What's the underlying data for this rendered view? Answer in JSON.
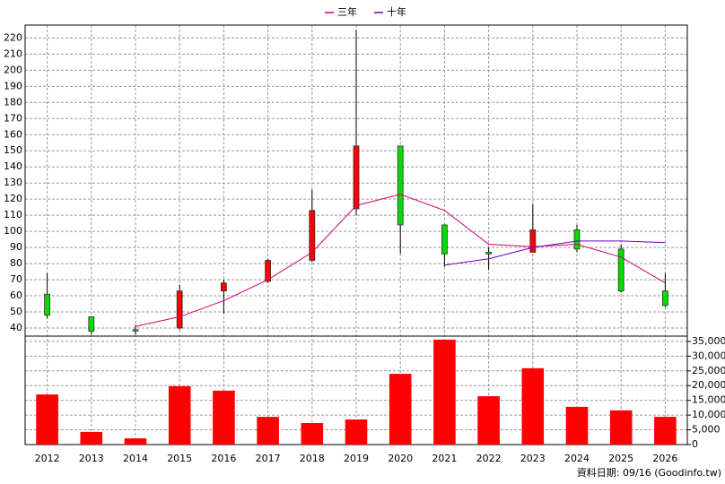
{
  "chart_data": {
    "type": "candlestick",
    "categories": [
      "2012",
      "2013",
      "2014",
      "2015",
      "2016",
      "2017",
      "2018",
      "2019",
      "2020",
      "2021",
      "2022",
      "2023",
      "2024",
      "2025",
      "2026"
    ],
    "open": [
      61,
      47,
      39,
      40,
      63,
      69,
      82,
      114,
      153,
      104,
      87,
      87,
      101,
      89,
      63
    ],
    "high": [
      74,
      47,
      42,
      67,
      70,
      83,
      126,
      225,
      153,
      104,
      90,
      117,
      104,
      92,
      74
    ],
    "low": [
      46,
      36,
      36,
      39,
      49,
      68,
      81,
      110,
      86,
      78,
      76,
      87,
      87,
      62,
      53
    ],
    "close": [
      48,
      38,
      38.5,
      63,
      68,
      82,
      113,
      153,
      104,
      86,
      86,
      101,
      89,
      63,
      54
    ],
    "up_color": "#ff0000",
    "down_color": "#00dd00",
    "series": [
      {
        "name": "三年",
        "color": "#d0006f",
        "values": [
          null,
          null,
          41,
          47,
          57,
          70,
          87,
          116,
          123,
          113,
          92,
          90.5,
          92,
          84,
          68
        ]
      },
      {
        "name": "十年",
        "color": "#6a00c8",
        "values": [
          null,
          null,
          null,
          null,
          null,
          null,
          null,
          null,
          null,
          79,
          83,
          90,
          94,
          94,
          93
        ]
      }
    ],
    "ylim": [
      35,
      228
    ],
    "yticks": [
      40,
      50,
      60,
      70,
      80,
      90,
      100,
      110,
      120,
      130,
      140,
      150,
      160,
      170,
      180,
      190,
      200,
      210,
      220
    ],
    "volume": {
      "color": "#ff0000",
      "axis": "y2",
      "values": [
        17000,
        4300,
        2100,
        19800,
        18300,
        9400,
        7300,
        8500,
        24000,
        35600,
        16400,
        25900,
        12800,
        11600,
        9400
      ]
    },
    "y2lim": [
      0,
      36800
    ],
    "y2ticks": [
      {
        "value": 0,
        "label": "0"
      },
      {
        "value": 5000,
        "label": "5,000"
      },
      {
        "value": 10000,
        "label": "10,000"
      },
      {
        "value": 15000,
        "label": "15,000"
      },
      {
        "value": 20000,
        "label": "20,000"
      },
      {
        "value": 25000,
        "label": "25,000"
      },
      {
        "value": 30000,
        "label": "30,000"
      },
      {
        "value": 35000,
        "label": "35,000"
      }
    ],
    "grid": true,
    "source_note": "資料日期: 09/16 (Goodinfo.tw)"
  }
}
